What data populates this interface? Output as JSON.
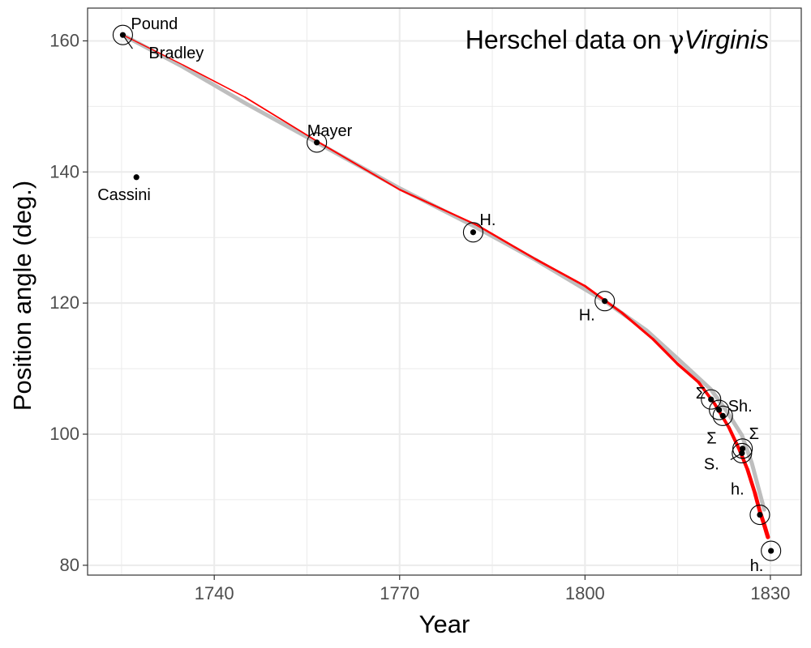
{
  "chart_data": {
    "type": "scatter",
    "title_main": "Herschel data on ",
    "title_gamma": "γ",
    "title_star": "Virginis",
    "xlabel": "Year",
    "ylabel": "Position angle (deg.)",
    "xlim": [
      1719.5,
      1835
    ],
    "ylim": [
      78.5,
      165
    ],
    "x_ticks": [
      1740,
      1770,
      1800,
      1830
    ],
    "x_minor_ticks": [
      1725,
      1755,
      1785,
      1815
    ],
    "y_ticks": [
      80,
      100,
      120,
      140,
      160
    ],
    "y_minor_ticks": [
      90,
      110,
      130,
      150
    ],
    "grid": true,
    "colors": {
      "point": "#000000",
      "circle": "#000000",
      "smooth": "#bebebe",
      "fit": "#ff0000",
      "grid": "#ebebeb",
      "panel_border": "#333333"
    },
    "points": [
      {
        "label": "Pound",
        "x": 1725.2,
        "y": 160.9,
        "circled": true
      },
      {
        "label": "Bradley",
        "x": 1725.2,
        "y": 160.9,
        "circled": false
      },
      {
        "label": "Cassini",
        "x": 1727.4,
        "y": 139.2,
        "circled": false
      },
      {
        "label": "Mayer",
        "x": 1756.6,
        "y": 144.5,
        "circled": true
      },
      {
        "label": "H.",
        "x": 1781.9,
        "y": 130.8,
        "circled": true
      },
      {
        "label": "H.",
        "x": 1803.2,
        "y": 120.3,
        "circled": true
      },
      {
        "label": "Σ",
        "x": 1820.4,
        "y": 105.3,
        "circled": true
      },
      {
        "label": "Sh.",
        "x": 1821.7,
        "y": 103.7,
        "circled": true
      },
      {
        "label": "Σ",
        "x": 1822.3,
        "y": 102.8,
        "circled": true
      },
      {
        "label": "Σ",
        "x": 1825.5,
        "y": 97.8,
        "circled": true
      },
      {
        "label": "S.",
        "x": 1825.4,
        "y": 97.1,
        "circled": true
      },
      {
        "label": "h.",
        "x": 1828.3,
        "y": 87.7,
        "circled": true
      },
      {
        "label": "h.",
        "x": 1830.1,
        "y": 82.2,
        "circled": true
      }
    ],
    "smooth_curve": {
      "x": [
        1725.2,
        1735,
        1745,
        1756.6,
        1770,
        1781.9,
        1792,
        1803.2,
        1810,
        1815,
        1820.4,
        1823,
        1825.4,
        1827,
        1829
      ],
      "y": [
        160.9,
        156,
        150.5,
        144.5,
        137.5,
        131.8,
        126.6,
        120.3,
        115.8,
        111.5,
        106.8,
        103.4,
        99.8,
        95.6,
        88.5
      ]
    },
    "fit_curve": {
      "x": [
        1725.2,
        1735,
        1745,
        1756.6,
        1770,
        1782.5,
        1792,
        1800,
        1806,
        1811,
        1815,
        1818.4,
        1821,
        1823.3,
        1825,
        1826.3,
        1827.5,
        1828.3,
        1829,
        1829.6
      ],
      "y": [
        160.9,
        156.3,
        151.4,
        144.7,
        137.3,
        131.9,
        126.7,
        122.6,
        118.5,
        114.5,
        110.7,
        107.9,
        104.6,
        101.0,
        97.6,
        94.6,
        91.0,
        88.2,
        86.2,
        84.3
      ]
    }
  }
}
